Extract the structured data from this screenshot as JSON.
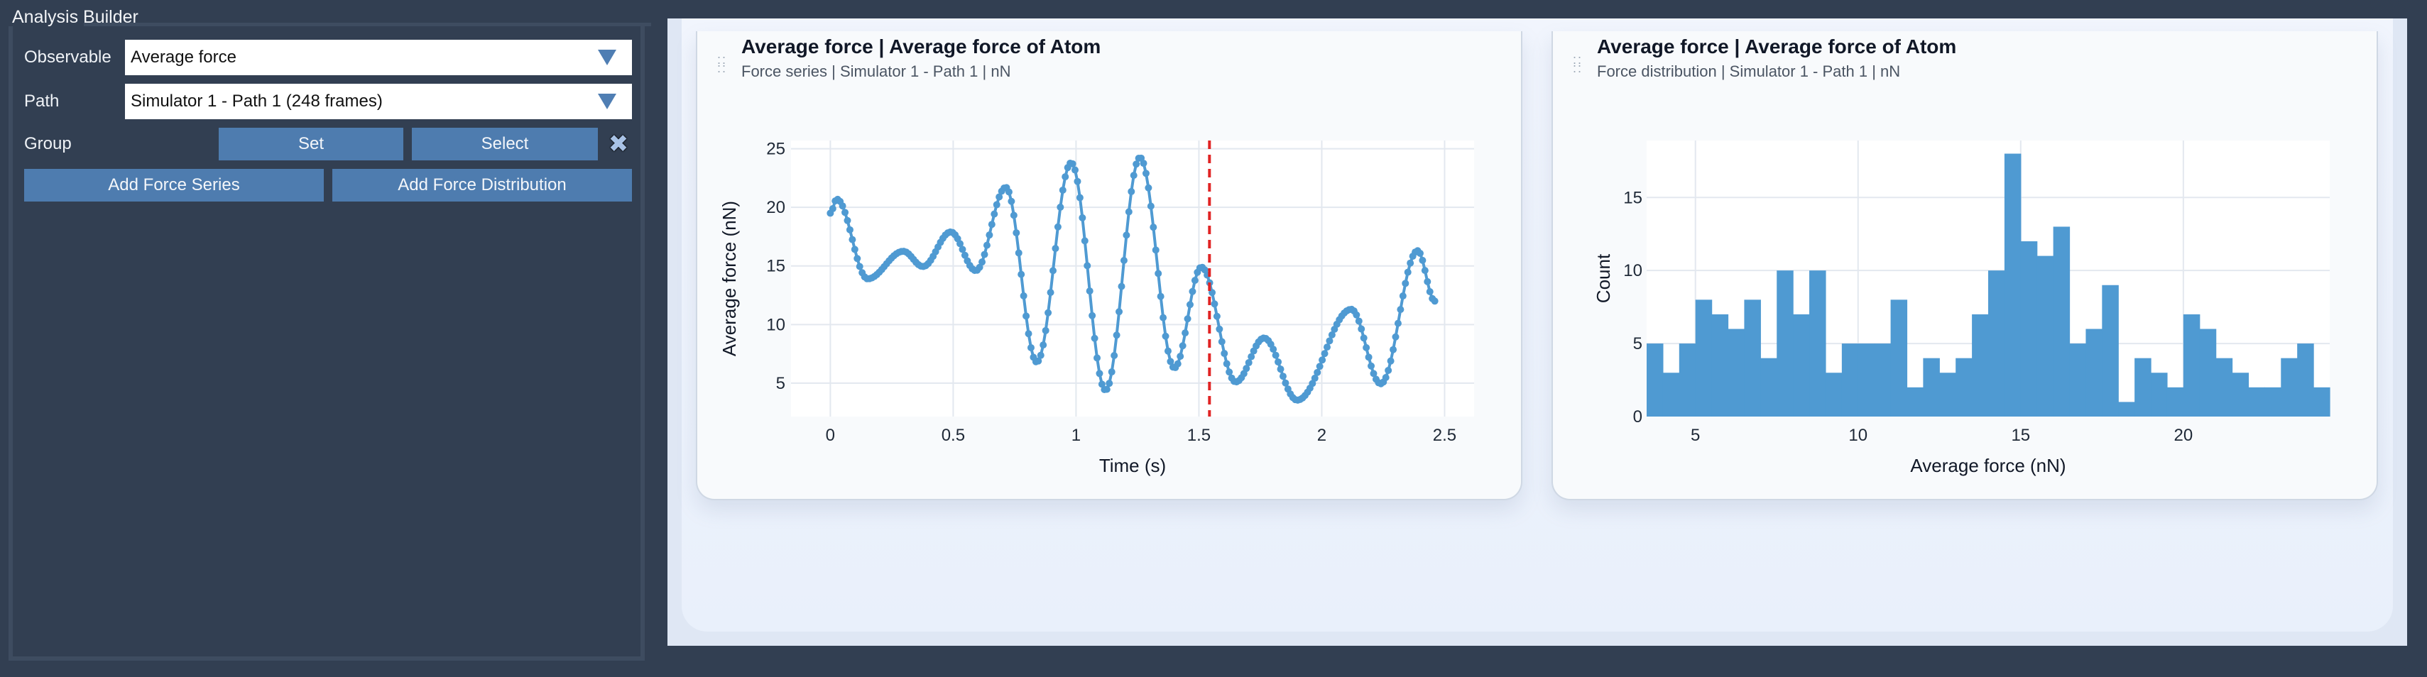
{
  "panel": {
    "title": "Analysis Builder",
    "observable_label": "Observable",
    "observable_value": "Average force",
    "path_label": "Path",
    "path_value": "Simulator 1 - Path 1 (248 frames)",
    "group_label": "Group",
    "set_button": "Set",
    "select_button": "Select",
    "clear_icon": "close-x-icon",
    "add_series_button": "Add Force Series",
    "add_distribution_button": "Add Force Distribution"
  },
  "cards": [
    {
      "title": "Average force | Average force of Atom",
      "subtitle": "Force series | Simulator 1 - Path 1 | nN"
    },
    {
      "title": "Average force | Average force of Atom",
      "subtitle": "Force distribution | Simulator 1 - Path 1 | nN"
    }
  ],
  "colors": {
    "series": "#4f9ad2",
    "marker_line": "#e02424",
    "button": "#4e7caf",
    "background": "#323f52"
  },
  "chart_data": [
    {
      "type": "line",
      "title": "Average force | Average force of Atom",
      "subtitle": "Force series | Simulator 1 - Path 1 | nN",
      "xlabel": "Time (s)",
      "ylabel": "Average force (nN)",
      "xlim": [
        -0.16,
        2.62
      ],
      "ylim": [
        2.15,
        25.7
      ],
      "xticks": [
        0,
        0.5,
        1,
        1.5,
        2,
        2.5
      ],
      "xtick_labels": [
        "0",
        "0.5",
        "1",
        "1.5",
        "2",
        "2.5"
      ],
      "yticks": [
        5,
        10,
        15,
        20,
        25
      ],
      "ytick_labels": [
        "5",
        "10",
        "15",
        "20",
        "25"
      ],
      "grid": true,
      "markers": true,
      "n_points": 248,
      "vline": {
        "x": 1.543,
        "style": "dashed",
        "color": "#e02424"
      },
      "keypoints": [
        [
          0.0,
          19.5
        ],
        [
          0.026,
          20.7
        ],
        [
          0.152,
          13.9
        ],
        [
          0.297,
          16.25
        ],
        [
          0.377,
          14.95
        ],
        [
          0.49,
          17.9
        ],
        [
          0.592,
          14.6
        ],
        [
          0.714,
          21.7
        ],
        [
          0.84,
          6.8
        ],
        [
          0.98,
          23.8
        ],
        [
          1.12,
          4.4
        ],
        [
          1.26,
          24.25
        ],
        [
          1.4,
          6.3
        ],
        [
          1.51,
          14.9
        ],
        [
          1.65,
          5.1
        ],
        [
          1.765,
          8.85
        ],
        [
          1.9,
          3.55
        ],
        [
          2.12,
          11.3
        ],
        [
          2.24,
          4.95
        ],
        [
          2.39,
          16.3
        ],
        [
          2.46,
          12.0
        ]
      ]
    },
    {
      "type": "bar",
      "subtype": "histogram",
      "title": "Average force | Average force of Atom",
      "subtitle": "Force distribution | Simulator 1 - Path 1 | nN",
      "xlabel": "Average force (nN)",
      "ylabel": "Count",
      "xlim": [
        3.5,
        24.5
      ],
      "ylim": [
        0,
        18.9
      ],
      "bin_start": 3.5,
      "bin_width": 0.5,
      "xticks": [
        5,
        10,
        15,
        20
      ],
      "xtick_labels": [
        "5",
        "10",
        "15",
        "20"
      ],
      "yticks": [
        0,
        5,
        10,
        15
      ],
      "ytick_labels": [
        "0",
        "5",
        "10",
        "15"
      ],
      "grid": true,
      "values": [
        5,
        3,
        5,
        8,
        7,
        6,
        8,
        4,
        10,
        7,
        10,
        3,
        5,
        5,
        5,
        8,
        2,
        4,
        3,
        4,
        7,
        10,
        18,
        12,
        11,
        13,
        5,
        6,
        9,
        1,
        4,
        3,
        2,
        7,
        6,
        4,
        3,
        2,
        2,
        4,
        5,
        2
      ]
    }
  ]
}
